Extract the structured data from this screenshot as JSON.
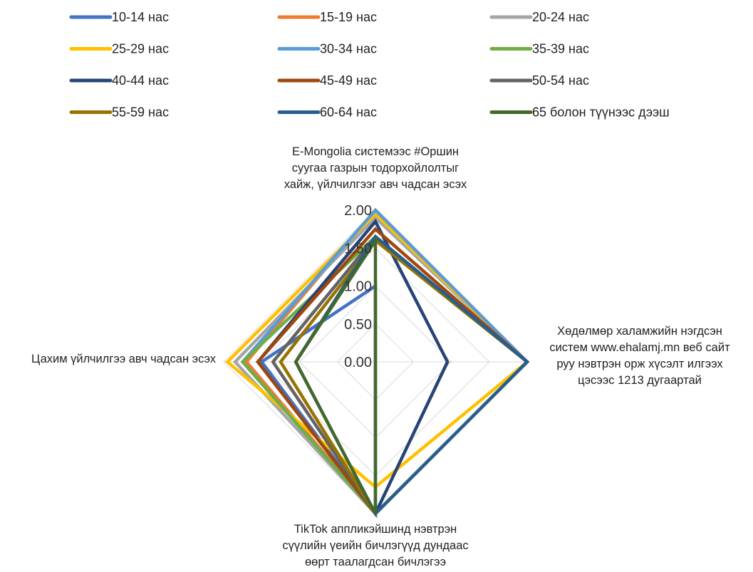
{
  "chart_data": {
    "type": "radar",
    "axes": [
      {
        "label": "E-Mongolia системээс #Оршин суугаа газрын тодорхойлолтыг хайж, үйлчилгээг авч чадсан эсэх",
        "lines": [
          "E-Mongolia системээс #Оршин",
          "суугаа газрын тодорхойлолтыг",
          "хайж, үйлчилгээг авч чадсан эсэх"
        ]
      },
      {
        "label": "Хөдөлмөр халамжийн нэгдсэн систем www.ehalamj.mn веб сайт руу нэвтрэн орж хүсэлт илгээх цэсээс 1213 дугаартай",
        "lines": [
          "Хөдөлмөр халамжийн нэгдсэн",
          "систем www.ehalamj.mn веб сайт",
          "руу нэвтрэн орж хүсэлт илгээх",
          "цэсээс 1213 дугаартай"
        ]
      },
      {
        "label": "TikTok аппликэйшинд нэвтрэн сүүлийн үеийн бичлэгүүд дундаас өөрт таалагдсан бичлэгээ",
        "lines": [
          "TikTok аппликэйшинд нэвтрэн",
          "сүүлийн үеийн бичлэгүүд дундаас",
          "өөрт таалагдсан бичлэгээ"
        ]
      },
      {
        "label": "Цахим үйлчилгээ авч чадсан эсэх",
        "lines": [
          "Цахим үйлчилгээ авч чадсан эсэх"
        ]
      }
    ],
    "ticks": [
      "0.00",
      "0.50",
      "1.00",
      "1.50",
      "2.00"
    ],
    "range": [
      0,
      2
    ],
    "series": [
      {
        "name": "10-14 нас",
        "color": "#4472C4",
        "values": [
          1.0,
          0.0,
          2.0,
          1.5
        ]
      },
      {
        "name": "15-19 нас",
        "color": "#ED7D31",
        "values": [
          2.0,
          2.0,
          2.0,
          1.7
        ]
      },
      {
        "name": "20-24 нас",
        "color": "#A5A5A5",
        "values": [
          1.9,
          2.0,
          2.0,
          1.85
        ]
      },
      {
        "name": "25-29 нас",
        "color": "#FFC000",
        "values": [
          1.95,
          2.0,
          1.65,
          1.95
        ]
      },
      {
        "name": "30-34 нас",
        "color": "#5B9BD5",
        "values": [
          2.0,
          2.0,
          2.0,
          1.75
        ]
      },
      {
        "name": "35-39 нас",
        "color": "#70AD47",
        "values": [
          1.65,
          2.0,
          2.0,
          1.75
        ]
      },
      {
        "name": "40-44 нас",
        "color": "#264478",
        "values": [
          1.85,
          0.95,
          2.0,
          1.55
        ]
      },
      {
        "name": "45-49 нас",
        "color": "#9E480E",
        "values": [
          1.75,
          2.0,
          2.0,
          1.55
        ]
      },
      {
        "name": "50-54 нас",
        "color": "#636363",
        "values": [
          1.65,
          2.0,
          2.0,
          1.35
        ]
      },
      {
        "name": "55-59 нас",
        "color": "#997300",
        "values": [
          1.6,
          2.0,
          2.0,
          1.25
        ]
      },
      {
        "name": "60-64 нас",
        "color": "#255E91",
        "values": [
          1.65,
          2.0,
          2.0,
          1.05
        ]
      },
      {
        "name": "65 болон түүнээс дээш",
        "color": "#43682B",
        "values": [
          1.6,
          0.0,
          2.0,
          1.05
        ]
      }
    ]
  }
}
